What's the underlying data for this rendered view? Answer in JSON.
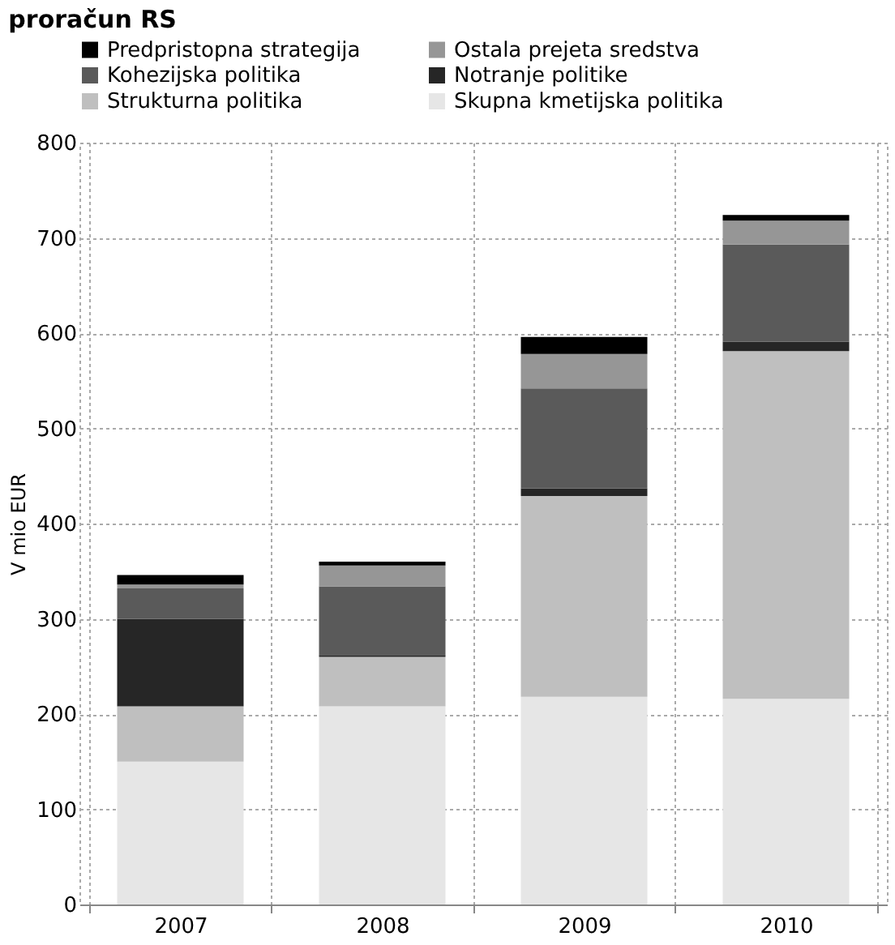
{
  "chart_data": {
    "type": "bar",
    "stacked": true,
    "title": "proračun RS",
    "ylabel": "V mio EUR",
    "categories": [
      "2007",
      "2008",
      "2009",
      "2010"
    ],
    "series": [
      {
        "name": "Skupna kmetijska politika",
        "color": "#e6e6e6",
        "values": [
          150,
          208,
          218,
          216
        ]
      },
      {
        "name": "Strukturna politika",
        "color": "#bfbfbf",
        "values": [
          58,
          52,
          211,
          365
        ]
      },
      {
        "name": "Notranje politike",
        "color": "#262626",
        "values": [
          92,
          2,
          8,
          10
        ]
      },
      {
        "name": "Kohezijska politika",
        "color": "#5a5a5a",
        "values": [
          32,
          72,
          105,
          102
        ]
      },
      {
        "name": "Ostala prejeta sredstva",
        "color": "#969696",
        "values": [
          4,
          22,
          36,
          25
        ]
      },
      {
        "name": "Predpristopna strategija",
        "color": "#000000",
        "values": [
          10,
          4,
          18,
          6
        ]
      }
    ],
    "ylim": [
      0,
      800
    ],
    "yticks": [
      0,
      100,
      200,
      300,
      400,
      500,
      600,
      700,
      800
    ],
    "grid": true,
    "legend": "top"
  }
}
